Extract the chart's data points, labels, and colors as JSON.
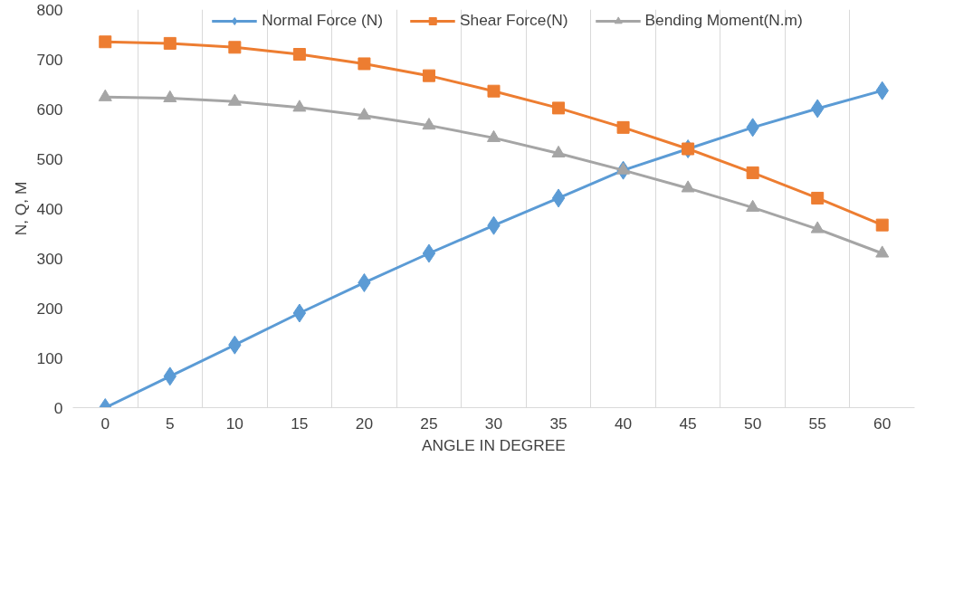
{
  "chart_data": {
    "type": "line",
    "xlabel": "ANGLE IN DEGREE",
    "ylabel": "N, Q, M",
    "categories": [
      "0",
      "5",
      "10",
      "15",
      "20",
      "25",
      "30",
      "35",
      "40",
      "45",
      "50",
      "55",
      "60"
    ],
    "series": [
      {
        "name": "Normal Force (N)",
        "color": "#5b9bd5",
        "marker": "diamond",
        "values": [
          0,
          63,
          126,
          190,
          251,
          310,
          366,
          421,
          477,
          520,
          563,
          601,
          637
        ]
      },
      {
        "name": "Shear Force(N)",
        "color": "#ed7d31",
        "marker": "square",
        "values": [
          735,
          732,
          724,
          710,
          691,
          667,
          636,
          602,
          563,
          520,
          472,
          421,
          367
        ]
      },
      {
        "name": "Bending Moment(N.m)",
        "color": "#a5a5a5",
        "marker": "triangle",
        "values": [
          624,
          622,
          615,
          603,
          587,
          567,
          542,
          511,
          477,
          441,
          402,
          359,
          310
        ]
      }
    ],
    "ylim": [
      0,
      800
    ],
    "yticks": [
      0,
      100,
      200,
      300,
      400,
      500,
      600,
      700,
      800
    ],
    "grid": "x",
    "legend": "top",
    "line_style": "solid"
  }
}
